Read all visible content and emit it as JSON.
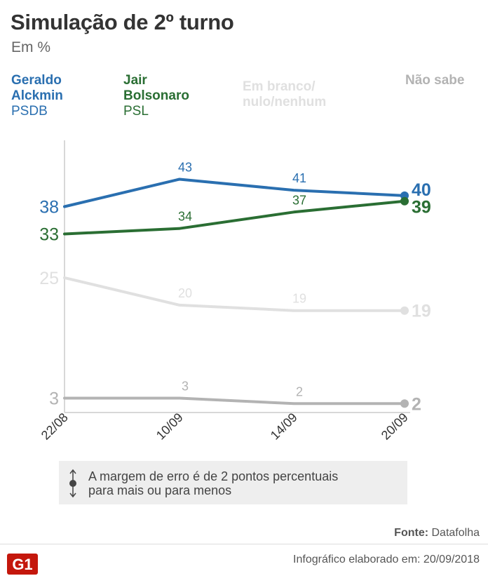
{
  "header": {
    "title": "Simulação de 2º turno",
    "subtitle": "Em %"
  },
  "legend": [
    {
      "name": "Geraldo\nAlckmin",
      "party": "PSDB",
      "color": "#2a6fb0"
    },
    {
      "name": "Jair\nBolsonaro",
      "party": "PSL",
      "color": "#2a6e33"
    },
    {
      "name": "Em branco/\nnulo/nenhum",
      "party": "",
      "color": "#e0e0e0"
    },
    {
      "name": "Não sabe",
      "party": "",
      "color": "#b3b3b3"
    }
  ],
  "chart_data": {
    "type": "line",
    "x": [
      "22/08",
      "10/09",
      "14/09",
      "20/09"
    ],
    "series": [
      {
        "name": "Geraldo Alckmin",
        "values": [
          38,
          43,
          41,
          40
        ],
        "color": "#2a6fb0"
      },
      {
        "name": "Jair Bolsonaro",
        "values": [
          33,
          34,
          37,
          39
        ],
        "color": "#2a6e33"
      },
      {
        "name": "Em branco/nulo/nenhum",
        "values": [
          25,
          20,
          19,
          19
        ],
        "color": "#e0e0e0"
      },
      {
        "name": "Não sabe",
        "values": [
          3,
          3,
          2,
          2
        ],
        "color": "#b3b3b3"
      }
    ],
    "grid": false,
    "legend_position": "top"
  },
  "note": {
    "text": "A margem de erro é de 2 pontos percentuais\npara mais ou para menos"
  },
  "footer": {
    "source_label": "Fonte:",
    "source_value": "Datafolha",
    "logo_text": "G1",
    "credit": "Infográfico elaborado em: 20/09/2018"
  }
}
